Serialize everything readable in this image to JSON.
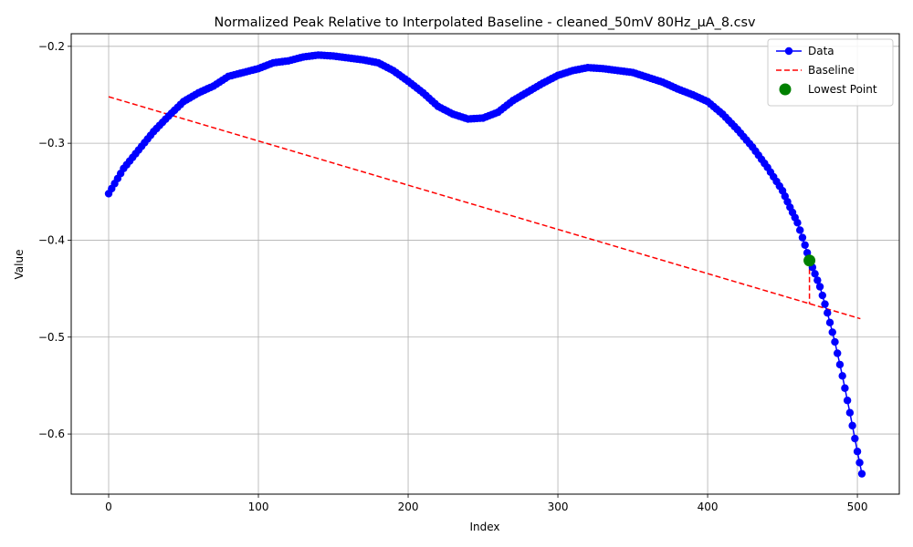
{
  "chart_data": {
    "type": "line",
    "title": "Normalized Peak Relative to Interpolated Baseline - cleaned_50mV 80Hz_μA_8.csv",
    "xlabel": "Index",
    "ylabel": "Value",
    "xlim": [
      -25,
      528
    ],
    "ylim": [
      -0.662,
      -0.187
    ],
    "xticks": [
      0,
      100,
      200,
      300,
      400,
      500
    ],
    "xtick_labels": [
      "0",
      "100",
      "200",
      "300",
      "400",
      "500"
    ],
    "yticks": [
      -0.6,
      -0.5,
      -0.4,
      -0.3,
      -0.2
    ],
    "ytick_labels": [
      "−0.6",
      "−0.5",
      "−0.4",
      "−0.3",
      "−0.2"
    ],
    "grid": true,
    "legend_position": "top-right",
    "series": [
      {
        "name": "Data",
        "style": "line-with-markers",
        "color": "#0000ff",
        "points": [
          [
            0,
            -0.352
          ],
          [
            10,
            -0.326
          ],
          [
            20,
            -0.307
          ],
          [
            30,
            -0.288
          ],
          [
            40,
            -0.272
          ],
          [
            50,
            -0.257
          ],
          [
            60,
            -0.248
          ],
          [
            70,
            -0.241
          ],
          [
            80,
            -0.231
          ],
          [
            90,
            -0.227
          ],
          [
            100,
            -0.223
          ],
          [
            110,
            -0.217
          ],
          [
            120,
            -0.215
          ],
          [
            130,
            -0.211
          ],
          [
            140,
            -0.209
          ],
          [
            150,
            -0.21
          ],
          [
            160,
            -0.212
          ],
          [
            170,
            -0.214
          ],
          [
            180,
            -0.217
          ],
          [
            190,
            -0.225
          ],
          [
            200,
            -0.236
          ],
          [
            210,
            -0.248
          ],
          [
            220,
            -0.262
          ],
          [
            230,
            -0.27
          ],
          [
            240,
            -0.275
          ],
          [
            250,
            -0.274
          ],
          [
            260,
            -0.268
          ],
          [
            270,
            -0.256
          ],
          [
            280,
            -0.247
          ],
          [
            290,
            -0.238
          ],
          [
            300,
            -0.23
          ],
          [
            310,
            -0.225
          ],
          [
            320,
            -0.222
          ],
          [
            330,
            -0.223
          ],
          [
            340,
            -0.225
          ],
          [
            350,
            -0.227
          ],
          [
            360,
            -0.232
          ],
          [
            370,
            -0.237
          ],
          [
            380,
            -0.244
          ],
          [
            390,
            -0.25
          ],
          [
            400,
            -0.257
          ],
          [
            410,
            -0.27
          ],
          [
            420,
            -0.286
          ],
          [
            430,
            -0.304
          ],
          [
            440,
            -0.325
          ],
          [
            450,
            -0.349
          ],
          [
            455,
            -0.366
          ],
          [
            460,
            -0.382
          ],
          [
            465,
            -0.405
          ],
          [
            468,
            -0.421
          ],
          [
            470,
            -0.428
          ],
          [
            475,
            -0.448
          ],
          [
            480,
            -0.475
          ],
          [
            485,
            -0.505
          ],
          [
            490,
            -0.54
          ],
          [
            495,
            -0.578
          ],
          [
            500,
            -0.618
          ],
          [
            503,
            -0.641
          ]
        ]
      },
      {
        "name": "Baseline",
        "style": "dashed",
        "color": "#ff0000",
        "points": [
          [
            0,
            -0.252
          ],
          [
            502,
            -0.481
          ]
        ]
      },
      {
        "name": "Lowest Point",
        "style": "marker",
        "color": "#008000",
        "points": [
          [
            468,
            -0.421
          ]
        ]
      }
    ],
    "annotations": [
      {
        "type": "vertical-dashed",
        "color": "#ff0000",
        "x": 468,
        "y_from": -0.421,
        "y_to": -0.466
      }
    ]
  }
}
